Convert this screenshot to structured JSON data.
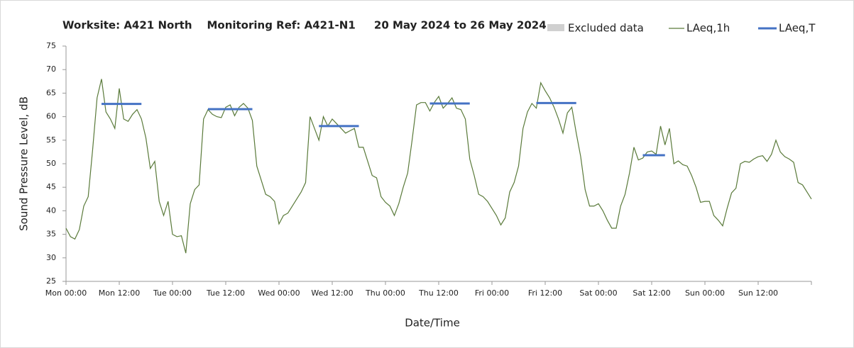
{
  "chart_data": {
    "type": "line",
    "title": "Worksite: A421 North    Monitoring Ref: A421-N1     20 May 2024 to 26 May 2024",
    "x_label": "Date/Time",
    "y_label": "Sound Pressure Level, dB",
    "xlim": [
      0,
      168
    ],
    "xticks": [
      {
        "value": 0,
        "label": "Mon 00:00"
      },
      {
        "value": 12,
        "label": "Mon 12:00"
      },
      {
        "value": 24,
        "label": "Tue 00:00"
      },
      {
        "value": 36,
        "label": "Tue 12:00"
      },
      {
        "value": 48,
        "label": "Wed 00:00"
      },
      {
        "value": 60,
        "label": "Wed 12:00"
      },
      {
        "value": 72,
        "label": "Thu 00:00"
      },
      {
        "value": 84,
        "label": "Thu 12:00"
      },
      {
        "value": 96,
        "label": "Fri 00:00"
      },
      {
        "value": 108,
        "label": "Fri 12:00"
      },
      {
        "value": 120,
        "label": "Sat 00:00"
      },
      {
        "value": 132,
        "label": "Sat 12:00"
      },
      {
        "value": 144,
        "label": "Sun 00:00"
      },
      {
        "value": 156,
        "label": "Sun 12:00"
      }
    ],
    "ylim": [
      25,
      75
    ],
    "yticks": [
      25,
      30,
      35,
      40,
      45,
      50,
      55,
      60,
      65,
      70,
      75
    ],
    "grid": false,
    "excluded": {
      "name": "Excluded data",
      "color": "#d0d0d0"
    },
    "series": [
      {
        "name": "LAeq,1h",
        "color": "#5a7a3a",
        "x": [
          0,
          1,
          2,
          3,
          4,
          5,
          6,
          7,
          8,
          9,
          10,
          11,
          12,
          13,
          14,
          15,
          16,
          17,
          18,
          19,
          20,
          21,
          22,
          23,
          24,
          25,
          26,
          27,
          28,
          29,
          30,
          31,
          32,
          33,
          34,
          35,
          36,
          37,
          38,
          39,
          40,
          41,
          42,
          43,
          44,
          45,
          46,
          47,
          48,
          49,
          50,
          51,
          52,
          53,
          54,
          55,
          56,
          57,
          58,
          59,
          60,
          61,
          62,
          63,
          64,
          65,
          66,
          67,
          68,
          69,
          70,
          71,
          72,
          73,
          74,
          75,
          76,
          77,
          78,
          79,
          80,
          81,
          82,
          83,
          84,
          85,
          86,
          87,
          88,
          89,
          90,
          91,
          92,
          93,
          94,
          95,
          96,
          97,
          98,
          99,
          100,
          101,
          102,
          103,
          104,
          105,
          106,
          107,
          108,
          109,
          110,
          111,
          112,
          113,
          114,
          115,
          116,
          117,
          118,
          119,
          120,
          121,
          122,
          123,
          124,
          125,
          126,
          127,
          128,
          129,
          130,
          131,
          132,
          133,
          134,
          135,
          136,
          137,
          138,
          139,
          140,
          141,
          142,
          143,
          144,
          145,
          146,
          147,
          148,
          149,
          150,
          151,
          152,
          153,
          154,
          155,
          156,
          157,
          158,
          159,
          160,
          161,
          162,
          163,
          164,
          165,
          166,
          167,
          168
        ],
        "values": [
          36.3,
          34.5,
          34,
          36,
          41,
          43,
          53,
          64,
          68,
          61,
          59.5,
          57.5,
          66,
          59.5,
          59,
          60.5,
          61.5,
          59.5,
          55.5,
          49,
          50.5,
          42,
          39,
          42,
          35,
          34.5,
          34.7,
          31,
          41.5,
          44.5,
          45.5,
          59.5,
          61.5,
          60.5,
          60,
          59.8,
          62,
          62.5,
          60.2,
          62,
          62.8,
          61.8,
          59.2,
          49.5,
          46.5,
          43.5,
          43,
          42,
          37.2,
          39,
          39.5,
          41,
          42.5,
          44,
          46,
          60,
          57.5,
          55,
          60,
          58,
          59.5,
          58.5,
          57.5,
          56.5,
          57,
          57.5,
          53.5,
          53.5,
          50.5,
          47.5,
          47,
          43,
          41.8,
          41,
          39,
          41.5,
          45,
          48,
          55,
          62.5,
          63,
          63,
          61.2,
          63,
          64.3,
          61.8,
          62.8,
          64,
          61.8,
          61.5,
          59.5,
          51,
          47.5,
          43.5,
          43,
          42,
          40.5,
          39,
          37,
          38.5,
          44,
          46,
          49.5,
          57.5,
          61,
          62.8,
          61.8,
          67.2,
          65.5,
          64,
          62,
          59.5,
          56.5,
          60.8,
          62,
          56.5,
          51.5,
          44.5,
          41,
          41,
          41.5,
          40,
          38,
          36.3,
          36.3,
          41,
          43.5,
          48,
          53.5,
          50.8,
          51.2,
          52.5,
          52.7,
          52,
          58,
          54,
          57.5,
          50,
          50.6,
          49.8,
          49.5,
          47.5,
          45,
          41.8,
          42,
          42,
          39,
          38,
          36.8,
          40.5,
          43.8,
          44.8,
          50,
          50.5,
          50.3,
          51,
          51.5,
          51.7,
          50.5,
          52,
          55,
          52.5,
          51.5,
          51,
          50.3,
          46,
          45.5,
          44,
          42.5
        ]
      }
    ],
    "period_series": {
      "name": "LAeq,T",
      "color": "#4472c4",
      "segments": [
        {
          "x": [
            8,
            17
          ],
          "value": 62.7
        },
        {
          "x": [
            32,
            42
          ],
          "value": 61.6
        },
        {
          "x": [
            57,
            66
          ],
          "value": 58
        },
        {
          "x": [
            82,
            91
          ],
          "value": 62.8
        },
        {
          "x": [
            106,
            115
          ],
          "value": 62.9
        },
        {
          "x": [
            130,
            135
          ],
          "value": 51.8
        }
      ]
    }
  }
}
